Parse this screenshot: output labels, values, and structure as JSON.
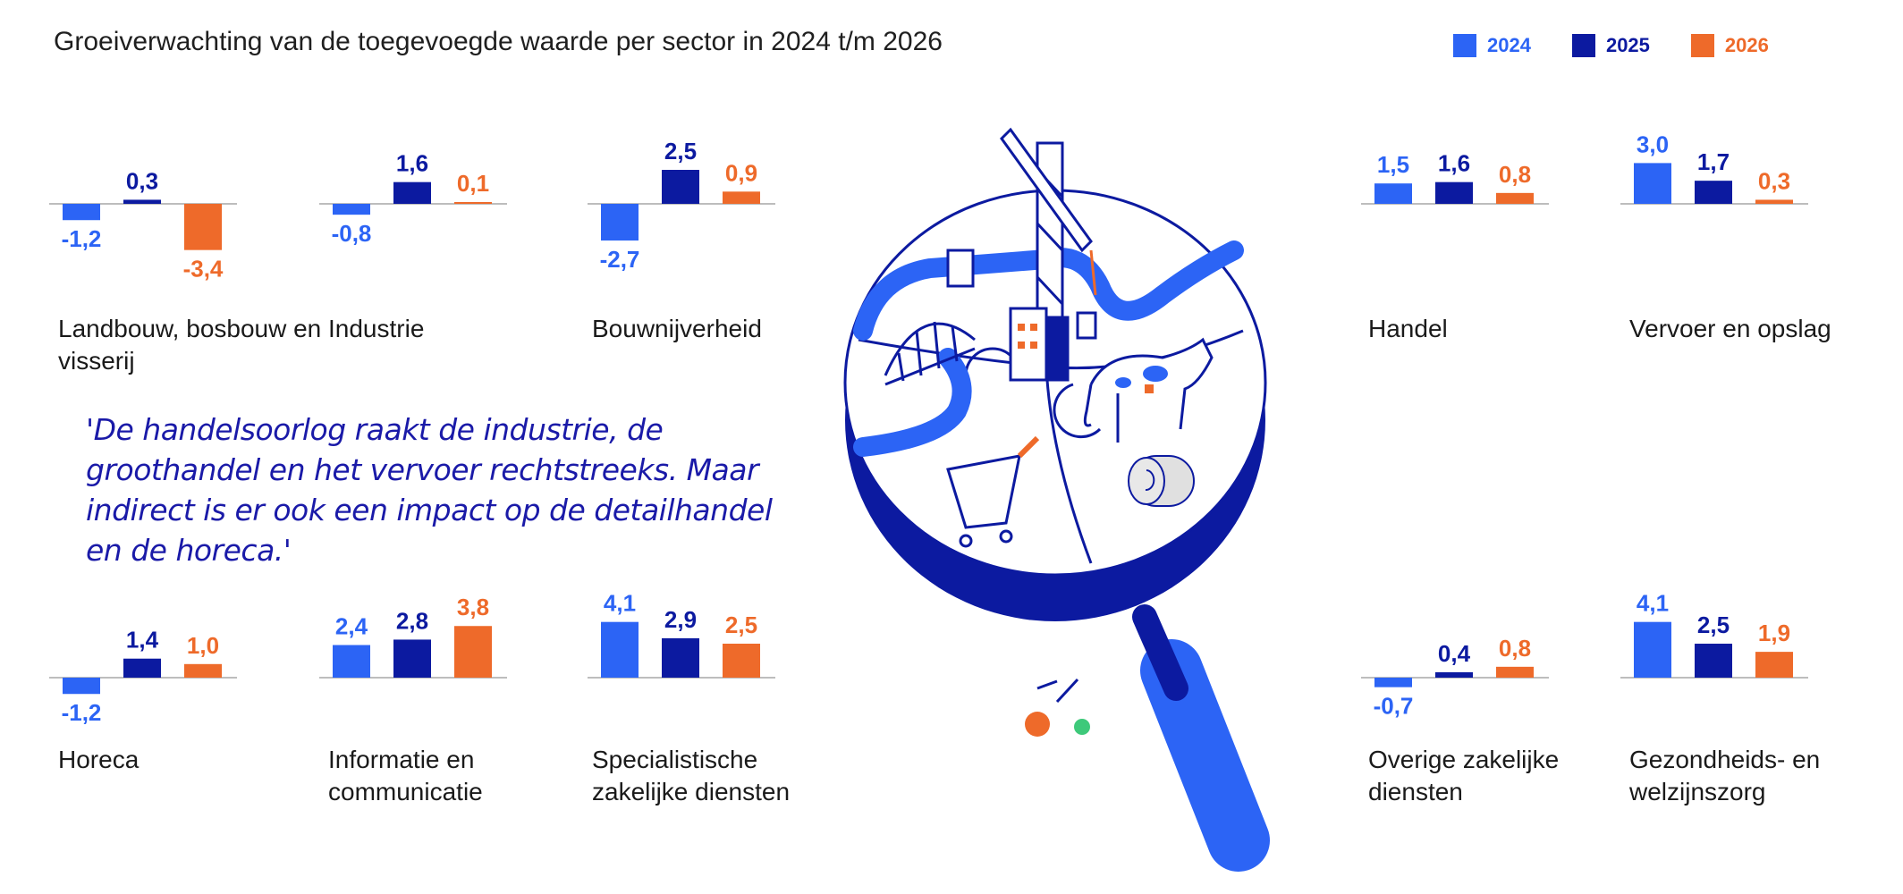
{
  "title": "Groeiverwachting van de toegevoegde waarde per sector in 2024 t/m 2026",
  "quote": "'De handelsoorlog raakt de industrie, de groothandel en het vervoer rechtstreeks. Maar indirect is er ook een impact op de detailhandel en de horeca.'",
  "colors": {
    "y2024": "#2c64f5",
    "y2025": "#0c1aa0",
    "y2026": "#ee6a2a",
    "axis": "#bdbdbd"
  },
  "chart_data": {
    "type": "bar",
    "series_names": [
      "2024",
      "2025",
      "2026"
    ],
    "panels": [
      {
        "category": "Landbouw, bosbouw en visserij",
        "values": [
          -1.2,
          0.3,
          -3.4
        ],
        "labels": [
          "-1,2",
          "0,3",
          "-3,4"
        ]
      },
      {
        "category": "Industrie",
        "values": [
          -0.8,
          1.6,
          0.1
        ],
        "labels": [
          "-0,8",
          "1,6",
          "0,1"
        ]
      },
      {
        "category": "Bouwnijverheid",
        "values": [
          -2.7,
          2.5,
          0.9
        ],
        "labels": [
          "-2,7",
          "2,5",
          "0,9"
        ]
      },
      {
        "category": "Handel",
        "values": [
          1.5,
          1.6,
          0.8
        ],
        "labels": [
          "1,5",
          "1,6",
          "0,8"
        ]
      },
      {
        "category": "Vervoer en opslag",
        "values": [
          3.0,
          1.7,
          0.3
        ],
        "labels": [
          "3,0",
          "1,7",
          "0,3"
        ]
      },
      {
        "category": "Horeca",
        "values": [
          -1.2,
          1.4,
          1.0
        ],
        "labels": [
          "-1,2",
          "1,4",
          "1,0"
        ]
      },
      {
        "category": "Informatie en communicatie",
        "values": [
          2.4,
          2.8,
          3.8
        ],
        "labels": [
          "2,4",
          "2,8",
          "3,8"
        ]
      },
      {
        "category": "Specialistische zakelijke diensten",
        "values": [
          4.1,
          2.9,
          2.5
        ],
        "labels": [
          "4,1",
          "2,9",
          "2,5"
        ]
      },
      {
        "category": "Overige zakelijke diensten",
        "values": [
          -0.7,
          0.4,
          0.8
        ],
        "labels": [
          "-0,7",
          "0,4",
          "0,8"
        ]
      },
      {
        "category": "Gezondheids- en welzijnszorg",
        "values": [
          4.1,
          2.5,
          1.9
        ],
        "labels": [
          "4,1",
          "2,5",
          "1,9"
        ]
      }
    ]
  }
}
